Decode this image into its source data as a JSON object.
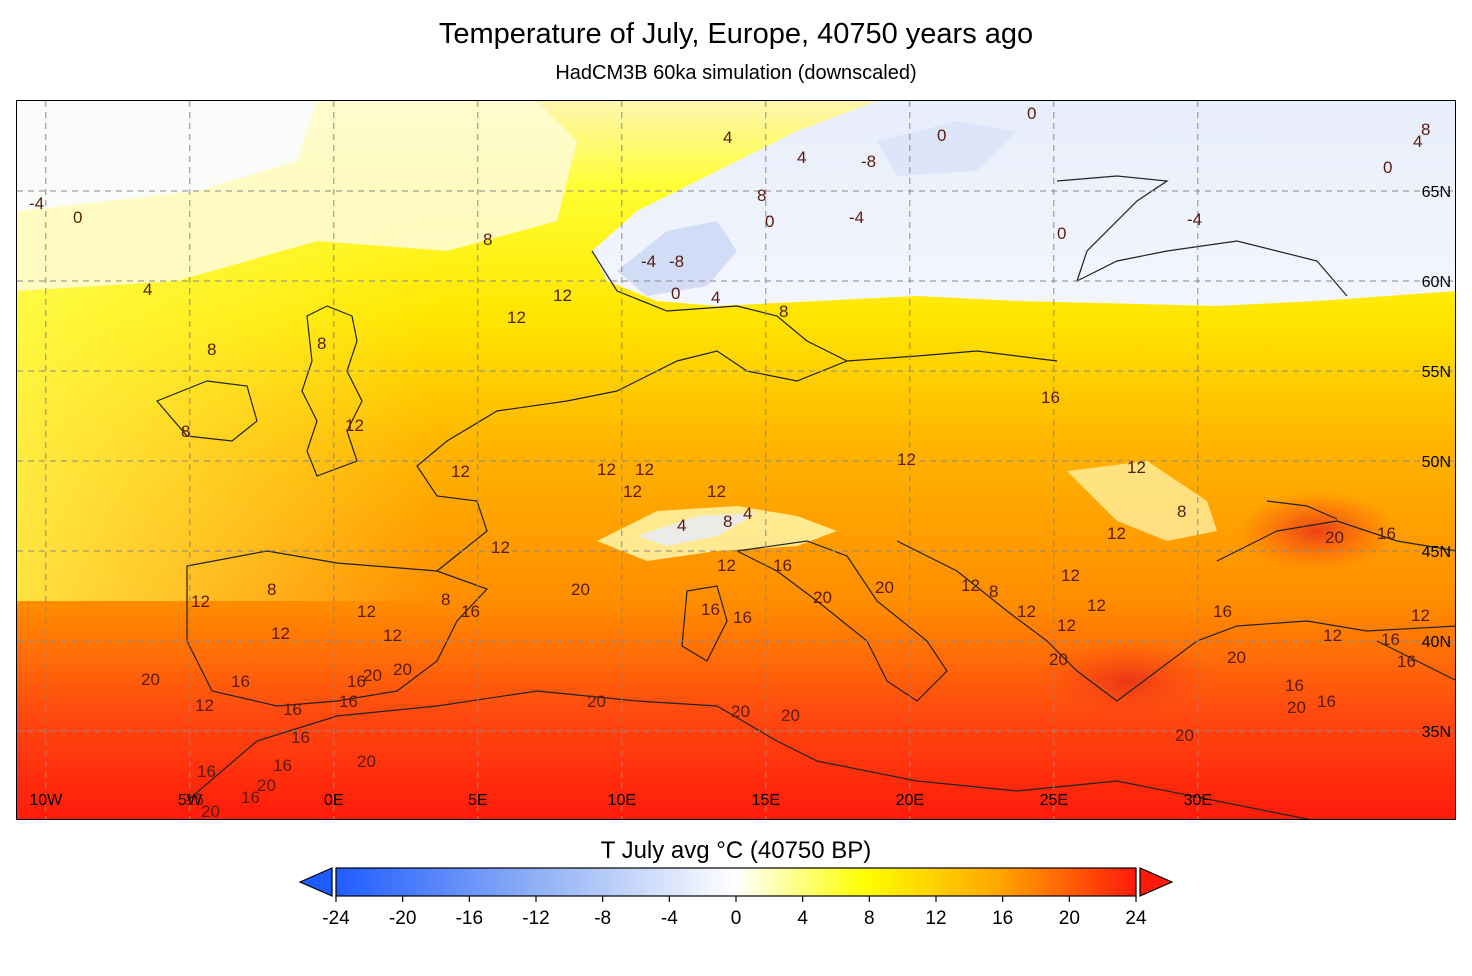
{
  "header": {
    "title": "Temperature of July, Europe, 40750 years ago",
    "subtitle": "HadCM3B 60ka simulation (downscaled)"
  },
  "map": {
    "colormap": {
      "cold_extreme": "#1f5cff",
      "neutral": "#ffffff",
      "mid_warm": "#ffff00",
      "warm": "#ffa500",
      "hot_extreme": "#ff1a0a"
    },
    "extent": {
      "lon_min": -11,
      "lon_max": 39,
      "lat_min": 30,
      "lat_max": 70
    },
    "lat_labels": [
      "65N",
      "60N",
      "55N",
      "50N",
      "45N",
      "40N",
      "35N"
    ],
    "lon_labels": [
      "10W",
      "5W",
      "0E",
      "5E",
      "10E",
      "15E",
      "20E",
      "25E",
      "30E"
    ],
    "contour_labels": [
      "0",
      "4",
      "-4",
      "8",
      "-8",
      "12",
      "16",
      "20"
    ]
  },
  "colorbar": {
    "title": "T July avg °C (40750 BP)",
    "min": -24,
    "max": 24,
    "tick_labels": [
      "-24",
      "-20",
      "-16",
      "-12",
      "-8",
      "-4",
      "0",
      "4",
      "8",
      "12",
      "16",
      "20",
      "24"
    ]
  }
}
